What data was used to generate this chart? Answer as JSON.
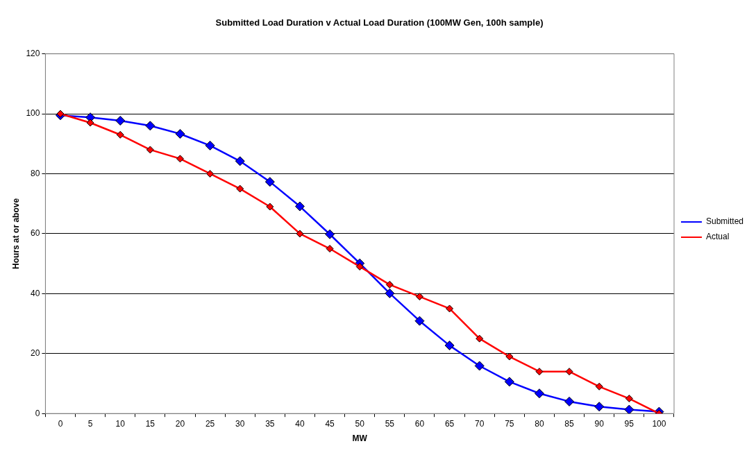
{
  "chart_data": {
    "type": "line",
    "title": "Submitted Load Duration v Actual Load Duration (100MW Gen, 100h sample)",
    "xlabel": "MW",
    "ylabel": "Hours at or above",
    "categories": [
      "0",
      "5",
      "10",
      "15",
      "20",
      "25",
      "30",
      "35",
      "40",
      "45",
      "50",
      "55",
      "60",
      "65",
      "70",
      "75",
      "80",
      "85",
      "90",
      "95",
      "100"
    ],
    "series": [
      {
        "name": "Submitted",
        "color": "#0000ff",
        "values": [
          99.5,
          98.8,
          97.7,
          96,
          93.3,
          89.4,
          84.2,
          77.3,
          69.1,
          59.8,
          50.1,
          40.1,
          30.9,
          22.7,
          15.9,
          10.6,
          6.7,
          4.0,
          2.3,
          1.3,
          0.6
        ]
      },
      {
        "name": "Actual",
        "color": "#ff0000",
        "values": [
          100,
          97,
          93,
          88,
          85,
          80,
          75,
          69,
          60,
          55,
          49,
          43,
          39,
          35,
          25,
          19,
          14,
          14,
          9,
          5,
          0
        ]
      }
    ],
    "ylim": [
      0,
      120
    ],
    "yticks": [
      0,
      20,
      40,
      60,
      80,
      100,
      120
    ],
    "grid": "y",
    "legend": "right",
    "marker": "diamond",
    "line_style": "solid"
  }
}
